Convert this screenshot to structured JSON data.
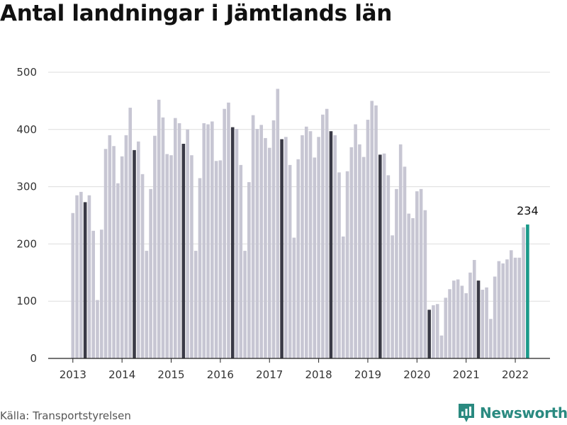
{
  "title": "Antal landningar i Jämtlands län",
  "source": "Källa: Transportstyrelsen",
  "brand": {
    "name": "Newsworthy",
    "icon": "newsworthy-logo-icon",
    "color": "#2a8a80"
  },
  "colors": {
    "bar": "#c7c6d3",
    "highlight": "#3a3a46",
    "latest": "#1a9a8a",
    "grid": "#dddddd"
  },
  "chart_data": {
    "type": "bar",
    "title": "Antal landningar i Jämtlands län",
    "xlabel": "",
    "ylabel": "",
    "ylim": [
      0,
      500
    ],
    "yticks": [
      0,
      100,
      200,
      300,
      400,
      500
    ],
    "ytick_labels": [
      "0",
      "100",
      "200",
      "300",
      "400",
      "500"
    ],
    "xtick_labels": [
      "2013",
      "2014",
      "2015",
      "2016",
      "2017",
      "2018",
      "2019",
      "2020",
      "2021",
      "2022"
    ],
    "grid": true,
    "start": "2013-01",
    "end": "2022-04",
    "highlight_month": 4,
    "latest_label": "234",
    "values": [
      254,
      285,
      291,
      273,
      285,
      223,
      102,
      225,
      366,
      390,
      371,
      306,
      353,
      390,
      438,
      364,
      379,
      322,
      188,
      296,
      389,
      452,
      421,
      357,
      355,
      420,
      411,
      375,
      400,
      355,
      188,
      315,
      411,
      409,
      414,
      345,
      346,
      436,
      447,
      404,
      401,
      338,
      188,
      308,
      425,
      401,
      408,
      385,
      368,
      416,
      471,
      383,
      387,
      338,
      211,
      348,
      390,
      405,
      397,
      351,
      387,
      426,
      436,
      397,
      390,
      325,
      213,
      327,
      369,
      409,
      374,
      352,
      417,
      450,
      442,
      356,
      358,
      320,
      215,
      296,
      374,
      335,
      253,
      245,
      292,
      296,
      259,
      85,
      93,
      95,
      40,
      106,
      121,
      136,
      138,
      127,
      114,
      150,
      172,
      136,
      120,
      124,
      69,
      143,
      170,
      166,
      173,
      189,
      176,
      176,
      229,
      234
    ]
  }
}
